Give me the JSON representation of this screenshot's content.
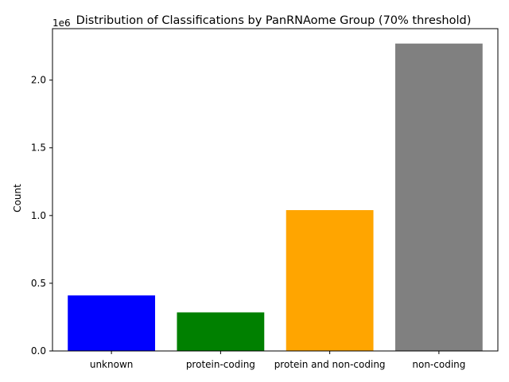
{
  "chart_data": {
    "type": "bar",
    "title": "Distribution of Classifications by PanRNAome Group (70% threshold)",
    "xlabel": "",
    "ylabel": "Count",
    "y_offset_label": "1e6",
    "y_scale": 1000000,
    "categories": [
      "unknown",
      "protein-coding",
      "protein and non-coding",
      "non-coding"
    ],
    "values": [
      410000,
      285000,
      1040000,
      2270000
    ],
    "colors": [
      "#0000ff",
      "#008000",
      "#ffa500",
      "#808080"
    ],
    "ylim": [
      0,
      2380000
    ],
    "yticks": [
      0,
      500000,
      1000000,
      1500000,
      2000000
    ],
    "ytick_labels": [
      "0.0",
      "0.5",
      "1.0",
      "1.5",
      "2.0"
    ],
    "grid": false,
    "legend": "none"
  }
}
